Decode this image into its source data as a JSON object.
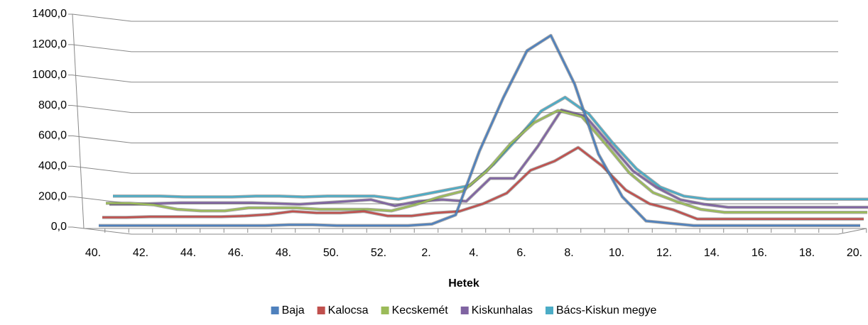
{
  "chart_data": {
    "type": "line",
    "x_label": "Hetek",
    "categories": [
      "40.",
      null,
      "42.",
      null,
      "44.",
      null,
      "46.",
      null,
      "48.",
      null,
      "50.",
      null,
      "52.",
      null,
      "2.",
      null,
      "4.",
      null,
      "6.",
      null,
      "8.",
      null,
      "10.",
      null,
      "12.",
      null,
      "14.",
      null,
      "16.",
      null,
      "18.",
      null,
      "20."
    ],
    "series": [
      {
        "name": "Baja",
        "color": "#4f81bd",
        "values": [
          10,
          10,
          10,
          10,
          10,
          10,
          10,
          10,
          15,
          15,
          10,
          10,
          10,
          10,
          20,
          80,
          500,
          850,
          1160,
          1260,
          940,
          480,
          200,
          40,
          25,
          10,
          10,
          10,
          10,
          10,
          10,
          10,
          10
        ]
      },
      {
        "name": "Kalocsa",
        "color": "#c0504d",
        "values": [
          40,
          40,
          45,
          45,
          45,
          45,
          50,
          60,
          80,
          70,
          70,
          80,
          50,
          50,
          70,
          80,
          130,
          200,
          350,
          410,
          500,
          380,
          220,
          130,
          90,
          30,
          30,
          30,
          30,
          30,
          30,
          30,
          30
        ]
      },
      {
        "name": "Kecskemét",
        "color": "#9bbb59",
        "values": [
          110,
          110,
          100,
          70,
          60,
          60,
          80,
          80,
          80,
          70,
          70,
          70,
          60,
          100,
          150,
          190,
          320,
          500,
          640,
          720,
          680,
          500,
          310,
          180,
          120,
          70,
          50,
          50,
          50,
          50,
          50,
          50,
          50
        ]
      },
      {
        "name": "Kiskunhalas",
        "color": "#8064a2",
        "values": [
          80,
          80,
          85,
          90,
          90,
          90,
          90,
          85,
          80,
          90,
          100,
          110,
          70,
          100,
          110,
          100,
          250,
          250,
          460,
          700,
          660,
          480,
          300,
          190,
          110,
          80,
          60,
          60,
          60,
          60,
          60,
          60,
          60
        ]
      },
      {
        "name": "Bács-Kiskun megye",
        "color": "#4bacc6",
        "values": [
          110,
          110,
          110,
          105,
          105,
          105,
          110,
          110,
          105,
          110,
          110,
          110,
          90,
          120,
          150,
          180,
          320,
          490,
          670,
          760,
          650,
          460,
          290,
          170,
          110,
          90,
          90,
          90,
          90,
          90,
          90,
          90,
          90
        ]
      }
    ],
    "ylim": [
      0,
      1400
    ],
    "yticks": [
      {
        "value": 0,
        "label": "0,0"
      },
      {
        "value": 200,
        "label": "200,0"
      },
      {
        "value": 400,
        "label": "400,0"
      },
      {
        "value": 600,
        "label": "600,0"
      },
      {
        "value": 800,
        "label": "800,0"
      },
      {
        "value": 1000,
        "label": "1000,0"
      },
      {
        "value": 1200,
        "label": "1200,0"
      },
      {
        "value": 1400,
        "label": "1400,0"
      }
    ],
    "grid": true,
    "legend": "bottom"
  }
}
